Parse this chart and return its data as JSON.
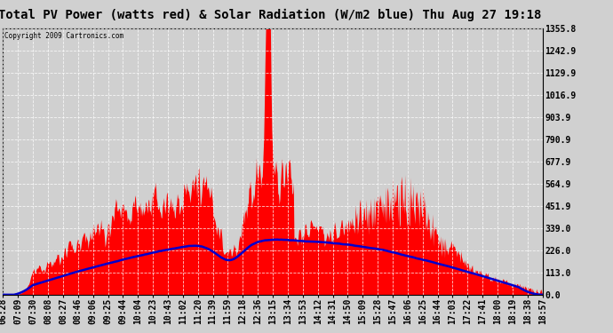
{
  "title": "Total PV Power (watts red) & Solar Radiation (W/m2 blue) Thu Aug 27 19:18",
  "copyright_text": "Copyright 2009 Cartronics.com",
  "bg_color": "#d0d0d0",
  "plot_bg_color": "#d0d0d0",
  "yticks": [
    0.0,
    113.0,
    226.0,
    339.0,
    451.9,
    564.9,
    677.9,
    790.9,
    903.9,
    1016.9,
    1129.9,
    1242.9,
    1355.8
  ],
  "ymax": 1355.8,
  "ymin": 0.0,
  "red_color": "#ff0000",
  "blue_color": "#0000cd",
  "title_fontsize": 10,
  "tick_fontsize": 7,
  "xtick_labels": [
    "06:28",
    "07:09",
    "07:30",
    "08:08",
    "08:27",
    "08:46",
    "09:06",
    "09:25",
    "09:44",
    "10:04",
    "10:23",
    "10:43",
    "11:02",
    "11:20",
    "11:39",
    "11:59",
    "12:18",
    "12:36",
    "13:15",
    "13:34",
    "13:53",
    "14:12",
    "14:31",
    "14:50",
    "15:09",
    "15:28",
    "15:47",
    "16:06",
    "16:25",
    "16:44",
    "17:03",
    "17:22",
    "17:41",
    "18:00",
    "18:19",
    "18:38",
    "18:57"
  ]
}
